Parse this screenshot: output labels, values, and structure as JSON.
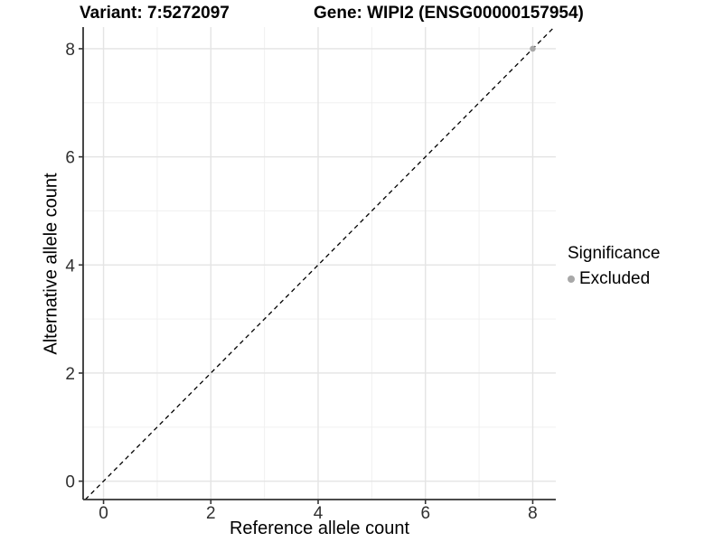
{
  "figure": {
    "title_left": "Variant: 7:5272097",
    "title_right": "Gene: WIPI2 (ENSG00000157954)"
  },
  "axes": {
    "x_label": "Reference allele count",
    "y_label": "Alternative allele count"
  },
  "legend": {
    "title": "Significance",
    "items": [
      {
        "label": "Excluded",
        "color": "#a8a8a8"
      }
    ]
  },
  "chart_data": {
    "type": "scatter",
    "title": "Variant: 7:5272097 | Gene: WIPI2 (ENSG00000157954)",
    "xlabel": "Reference allele count",
    "ylabel": "Alternative allele count",
    "xlim": [
      -0.38,
      8.43
    ],
    "ylim": [
      -0.34,
      8.4
    ],
    "x_ticks": [
      0,
      2,
      4,
      6,
      8
    ],
    "y_ticks": [
      0,
      2,
      4,
      6,
      8
    ],
    "x_minor_ticks": [
      1,
      3,
      5,
      7
    ],
    "y_minor_ticks": [
      1,
      3,
      5,
      7
    ],
    "grid": true,
    "legend_position": "right",
    "series": [
      {
        "name": "Excluded",
        "color": "#a8a8a8",
        "points": [
          {
            "x": 8,
            "y": 8
          }
        ],
        "point_radius": 3.3
      }
    ],
    "reference_line": {
      "type": "identity",
      "slope": 1,
      "intercept": 0,
      "style": "dashed",
      "color": "#000000",
      "width": 1.3,
      "dash": "5 4"
    },
    "style": {
      "grid_major_color": "#e4e4e4",
      "grid_minor_color": "#f0f0f0",
      "axis_line_color": "#333333",
      "tick_color": "#333333",
      "tick_text_color": "#303030",
      "background": "#ffffff"
    }
  }
}
